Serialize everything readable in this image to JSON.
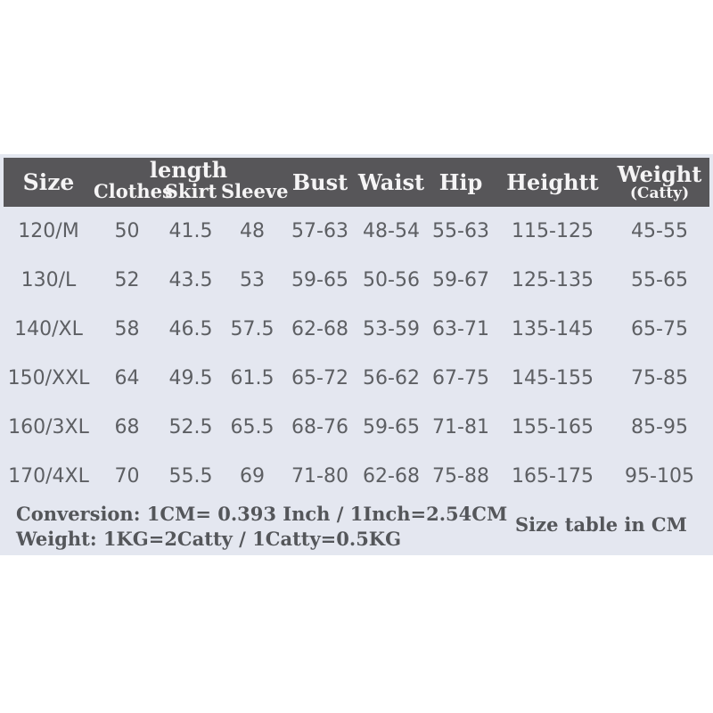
{
  "page": {
    "background": "#ffffff",
    "band_background": "#e4e7f0"
  },
  "table": {
    "header": {
      "background": "#575659",
      "text_color": "#f5f4f5",
      "size_label": "Size",
      "length_group": {
        "label": "length",
        "sub_columns": {
          "clothes": "Clothes",
          "skirt": "Skirt",
          "sleeve": "Sleeve"
        }
      },
      "bust_label": "Bust",
      "waist_label": "Waist",
      "hip_label": "Hip",
      "height_label": "Heightt",
      "weight_label": "Weight",
      "weight_unit": "(Catty)"
    },
    "text_color": "#5d5f63",
    "rows": [
      {
        "size": "120/M",
        "clothes": "50",
        "skirt": "41.5",
        "sleeve": "48",
        "bust": "57-63",
        "waist": "48-54",
        "hip": "55-63",
        "height": "115-125",
        "weight": "45-55"
      },
      {
        "size": "130/L",
        "clothes": "52",
        "skirt": "43.5",
        "sleeve": "53",
        "bust": "59-65",
        "waist": "50-56",
        "hip": "59-67",
        "height": "125-135",
        "weight": "55-65"
      },
      {
        "size": "140/XL",
        "clothes": "58",
        "skirt": "46.5",
        "sleeve": "57.5",
        "bust": "62-68",
        "waist": "53-59",
        "hip": "63-71",
        "height": "135-145",
        "weight": "65-75"
      },
      {
        "size": "150/XXL",
        "clothes": "64",
        "skirt": "49.5",
        "sleeve": "61.5",
        "bust": "65-72",
        "waist": "56-62",
        "hip": "67-75",
        "height": "145-155",
        "weight": "75-85"
      },
      {
        "size": "160/3XL",
        "clothes": "68",
        "skirt": "52.5",
        "sleeve": "65.5",
        "bust": "68-76",
        "waist": "59-65",
        "hip": "71-81",
        "height": "155-165",
        "weight": "85-95"
      },
      {
        "size": "170/4XL",
        "clothes": "70",
        "skirt": "55.5",
        "sleeve": "69",
        "bust": "71-80",
        "waist": "62-68",
        "hip": "75-88",
        "height": "165-175",
        "weight": "95-105"
      }
    ]
  },
  "footer": {
    "conversion_line": "Conversion:  1CM= 0.393 Inch / 1Inch=2.54CM",
    "weight_line": "Weight: 1KG=2Catty / 1Catty=0.5KG",
    "note": "Size table in CM",
    "text_color": "#54565a"
  }
}
